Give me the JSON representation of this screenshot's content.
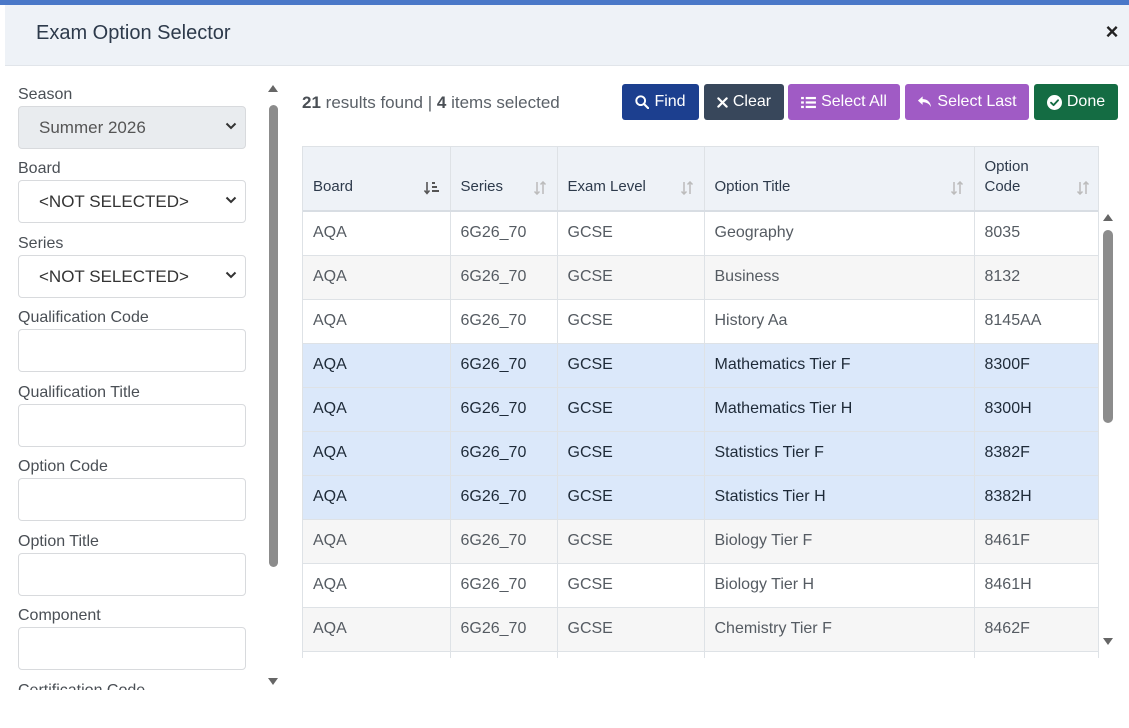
{
  "modal": {
    "title": "Exam Option Selector",
    "close_label": "×"
  },
  "sidebar": {
    "fields": [
      {
        "label": "Season",
        "type": "select",
        "value": "Summer 2026",
        "disabled": true
      },
      {
        "label": "Board",
        "type": "select",
        "value": "<NOT SELECTED>",
        "disabled": false
      },
      {
        "label": "Series",
        "type": "select",
        "value": "<NOT SELECTED>",
        "disabled": false
      },
      {
        "label": "Qualification Code",
        "type": "text",
        "value": ""
      },
      {
        "label": "Qualification Title",
        "type": "text",
        "value": ""
      },
      {
        "label": "Option Code",
        "type": "text",
        "value": ""
      },
      {
        "label": "Option Title",
        "type": "text",
        "value": ""
      },
      {
        "label": "Component",
        "type": "text",
        "value": ""
      },
      {
        "label": "Certification Code",
        "type": "text",
        "value": ""
      }
    ]
  },
  "summary": {
    "results_count": "21",
    "results_text": "results found",
    "separator": "|",
    "selected_count": "4",
    "selected_text": "items selected"
  },
  "toolbar": {
    "find": "Find",
    "clear": "Clear",
    "select_all": "Select All",
    "select_last": "Select Last",
    "done": "Done"
  },
  "table": {
    "columns": [
      "Board",
      "Series",
      "Exam Level",
      "Option Title",
      "Option Code"
    ],
    "rows": [
      {
        "board": "AQA",
        "series": "6G26_70",
        "level": "GCSE",
        "title": "Geography",
        "code": "8035",
        "selected": false
      },
      {
        "board": "AQA",
        "series": "6G26_70",
        "level": "GCSE",
        "title": "Business",
        "code": "8132",
        "selected": false
      },
      {
        "board": "AQA",
        "series": "6G26_70",
        "level": "GCSE",
        "title": "History Aa",
        "code": "8145AA",
        "selected": false
      },
      {
        "board": "AQA",
        "series": "6G26_70",
        "level": "GCSE",
        "title": "Mathematics Tier F",
        "code": "8300F",
        "selected": true
      },
      {
        "board": "AQA",
        "series": "6G26_70",
        "level": "GCSE",
        "title": "Mathematics Tier H",
        "code": "8300H",
        "selected": true
      },
      {
        "board": "AQA",
        "series": "6G26_70",
        "level": "GCSE",
        "title": "Statistics Tier F",
        "code": "8382F",
        "selected": true
      },
      {
        "board": "AQA",
        "series": "6G26_70",
        "level": "GCSE",
        "title": "Statistics Tier H",
        "code": "8382H",
        "selected": true
      },
      {
        "board": "AQA",
        "series": "6G26_70",
        "level": "GCSE",
        "title": "Biology Tier F",
        "code": "8461F",
        "selected": false
      },
      {
        "board": "AQA",
        "series": "6G26_70",
        "level": "GCSE",
        "title": "Biology Tier H",
        "code": "8461H",
        "selected": false
      },
      {
        "board": "AQA",
        "series": "6G26_70",
        "level": "GCSE",
        "title": "Chemistry Tier F",
        "code": "8462F",
        "selected": false
      },
      {
        "board": "",
        "series": "",
        "level": "",
        "title": "",
        "code": "",
        "selected": false
      }
    ]
  },
  "colors": {
    "find": "#1c3f8f",
    "clear": "#38475b",
    "select": "#a05bc5",
    "done": "#146c43",
    "selected_row": "#dbe8fa",
    "header_bg": "#eef2f7"
  },
  "icons": {
    "find": "search-icon",
    "clear": "x-icon",
    "select_all": "list-icon",
    "select_last": "reply-arrow-icon",
    "done": "check-circle-icon",
    "close": "close-icon"
  }
}
